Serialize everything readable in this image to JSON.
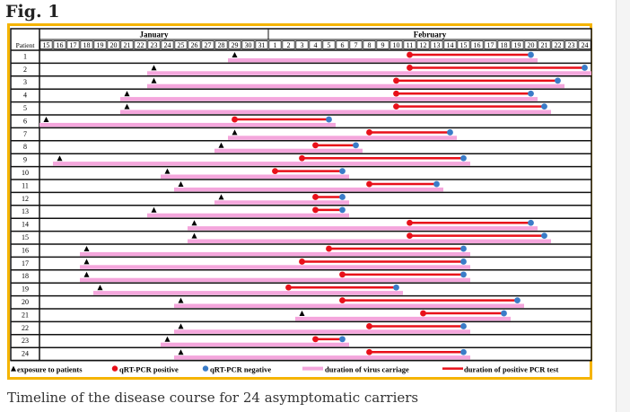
{
  "figure_label": "Fig. 1",
  "caption": "Timeline of the disease course for 24 asymptomatic carriers",
  "chart_data": {
    "type": "gantt",
    "row_header": "Patient",
    "months": [
      "January",
      "February"
    ],
    "days": [
      "15",
      "16",
      "17",
      "18",
      "19",
      "20",
      "21",
      "22",
      "23",
      "24",
      "25",
      "26",
      "27",
      "28",
      "29",
      "30",
      "31",
      "1",
      "2",
      "3",
      "4",
      "5",
      "6",
      "7",
      "8",
      "9",
      "10",
      "11",
      "12",
      "13",
      "14",
      "15",
      "16",
      "17",
      "18",
      "19",
      "20",
      "21",
      "22",
      "23",
      "24"
    ],
    "colors": {
      "exposure": "#000000",
      "positive": "#e8101a",
      "negative": "#3a7cc8",
      "carriage": "#f4a6dc",
      "pcr": "#e8101a",
      "frame": "#f5b400"
    },
    "legend": [
      {
        "key": "exposure",
        "label": "exposure to patients"
      },
      {
        "key": "positive",
        "label": "qRT-PCR positive"
      },
      {
        "key": "negative",
        "label": "qRT-PCR negative"
      },
      {
        "key": "carriage",
        "label": "duration of virus carriage"
      },
      {
        "key": "pcr",
        "label": "duration of positive PCR test"
      }
    ],
    "patients": [
      {
        "id": "1",
        "exposure": "Jan 29",
        "positive": "Feb 11",
        "negative": "Feb 20"
      },
      {
        "id": "2",
        "exposure": "Jan 23",
        "positive": "Feb 11",
        "negative": "Feb 24"
      },
      {
        "id": "3",
        "exposure": "Jan 23",
        "positive": "Feb 10",
        "negative": "Feb 22"
      },
      {
        "id": "4",
        "exposure": "Jan 21",
        "positive": "Feb 10",
        "negative": "Feb 20"
      },
      {
        "id": "5",
        "exposure": "Jan 21",
        "positive": "Feb 10",
        "negative": "Feb 21"
      },
      {
        "id": "6",
        "exposure": "Jan 15",
        "positive": "Jan 29",
        "negative": "Feb 5"
      },
      {
        "id": "7",
        "exposure": "Jan 29",
        "positive": "Feb 8",
        "negative": "Feb 14"
      },
      {
        "id": "8",
        "exposure": "Jan 28",
        "positive": "Feb 4",
        "negative": "Feb 7"
      },
      {
        "id": "9",
        "exposure": "Jan 16",
        "positive": "Feb 3",
        "negative": "Feb 15"
      },
      {
        "id": "10",
        "exposure": "Jan 24",
        "positive": "Feb 1",
        "negative": "Feb 6"
      },
      {
        "id": "11",
        "exposure": "Jan 25",
        "positive": "Feb 8",
        "negative": "Feb 13"
      },
      {
        "id": "12",
        "exposure": "Jan 28",
        "positive": "Feb 4",
        "negative": "Feb 6"
      },
      {
        "id": "13",
        "exposure": "Jan 23",
        "positive": "Feb 4",
        "negative": "Feb 6"
      },
      {
        "id": "14",
        "exposure": "Jan 26",
        "positive": "Feb 11",
        "negative": "Feb 20"
      },
      {
        "id": "15",
        "exposure": "Jan 26",
        "positive": "Feb 11",
        "negative": "Feb 21"
      },
      {
        "id": "16",
        "exposure": "Jan 18",
        "positive": "Feb 5",
        "negative": "Feb 15"
      },
      {
        "id": "17",
        "exposure": "Jan 18",
        "positive": "Feb 3",
        "negative": "Feb 15"
      },
      {
        "id": "18",
        "exposure": "Jan 18",
        "positive": "Feb 6",
        "negative": "Feb 15"
      },
      {
        "id": "19",
        "exposure": "Jan 19",
        "positive": "Feb 2",
        "negative": "Feb 10"
      },
      {
        "id": "20",
        "exposure": "Jan 25",
        "positive": "Feb 6",
        "negative": "Feb 19"
      },
      {
        "id": "21",
        "exposure": "Feb 3",
        "positive": "Feb 12",
        "negative": "Feb 18"
      },
      {
        "id": "22",
        "exposure": "Jan 25",
        "positive": "Feb 8",
        "negative": "Feb 15"
      },
      {
        "id": "23",
        "exposure": "Jan 24",
        "positive": "Feb 4",
        "negative": "Feb 6"
      },
      {
        "id": "24",
        "exposure": "Jan 25",
        "positive": "Feb 8",
        "negative": "Feb 15"
      }
    ]
  }
}
